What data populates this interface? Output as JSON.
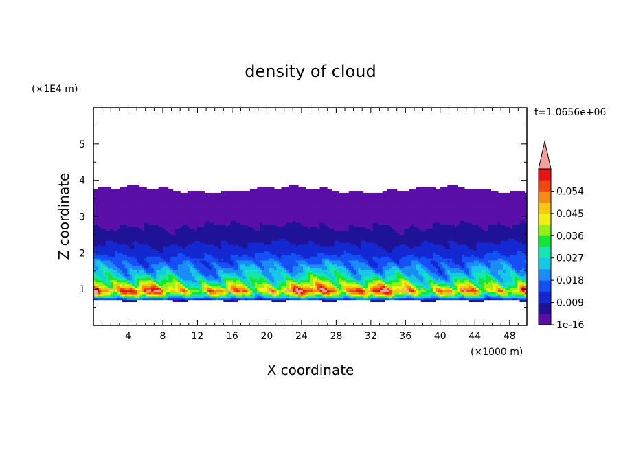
{
  "chart_data": {
    "type": "heatmap",
    "title": "density of cloud",
    "xlabel": "X coordinate",
    "ylabel": "Z coordinate",
    "x_unit": "(×1000 m)",
    "y_unit": "(×1E4 m)",
    "time_label": "t=1.0656e+06",
    "xlim": [
      0,
      50
    ],
    "ylim": [
      0,
      6
    ],
    "x_ticks": [
      "4",
      "8",
      "12",
      "16",
      "20",
      "24",
      "28",
      "32",
      "36",
      "40",
      "44",
      "48"
    ],
    "y_ticks": [
      "1",
      "2",
      "3",
      "4",
      "5"
    ],
    "colorbar": {
      "labels": [
        "1e-16",
        "0.009",
        "0.018",
        "0.027",
        "0.036",
        "0.045",
        "0.054"
      ],
      "levels": [
        0,
        0.0045,
        0.009,
        0.0135,
        0.018,
        0.0225,
        0.027,
        0.0315,
        0.036,
        0.0405,
        0.045,
        0.0495,
        0.054,
        0.0585
      ],
      "colors": [
        "#5a0fa8",
        "#1e1396",
        "#1428d2",
        "#1450f5",
        "#1a8cf5",
        "#14c8e6",
        "#14e6b4",
        "#14e632",
        "#96f014",
        "#f0f014",
        "#f5c814",
        "#f58c14",
        "#f04614",
        "#e61414"
      ],
      "over_color": "#f5a0a0"
    },
    "cloud_layer": {
      "z_bottom": 0.7,
      "z_top": 3.75,
      "mean_profile": [
        {
          "z": 0.7,
          "value": 0.006
        },
        {
          "z": 0.8,
          "value": 0.03
        },
        {
          "z": 0.95,
          "value": 0.052
        },
        {
          "z": 1.1,
          "value": 0.04
        },
        {
          "z": 1.3,
          "value": 0.028
        },
        {
          "z": 1.6,
          "value": 0.02
        },
        {
          "z": 2.0,
          "value": 0.012
        },
        {
          "z": 2.5,
          "value": 0.006
        },
        {
          "z": 3.0,
          "value": 0.003
        },
        {
          "z": 3.75,
          "value": 0.0005
        }
      ]
    }
  }
}
